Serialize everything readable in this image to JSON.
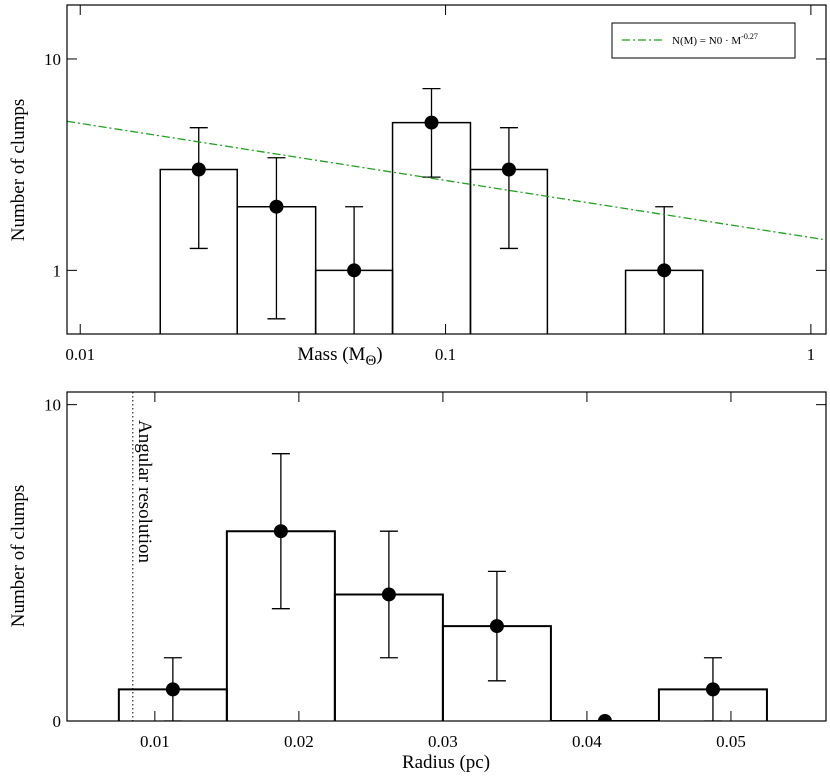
{
  "chart_data": [
    {
      "type": "histogram",
      "xlabel": "Mass (M",
      "xlabel_sub": "Θ",
      "xlabel_end": ")",
      "ylabel": "Number of clumps",
      "bins": [
        0.01656,
        0.0269,
        0.0441,
        0.0716,
        0.117,
        0.19,
        0.311,
        0.506
      ],
      "counts": [
        3,
        2,
        1,
        5,
        3,
        0,
        1
      ],
      "errors": [
        1.73,
        1.41,
        1,
        2.24,
        1.73,
        0,
        1
      ],
      "color": "#000000",
      "log_x": true,
      "log_y": true,
      "xlim": [
        0.0092,
        1.1
      ],
      "ylim": [
        0.5,
        18
      ],
      "xticks": [
        0.01,
        0.1,
        1
      ],
      "yticks": [
        1,
        10
      ],
      "fit": {
        "legend": "N(M) = N0 · M",
        "exponent": -0.27,
        "coefficient": 1.43,
        "color": "#22a022",
        "legend_position": "upper right"
      }
    },
    {
      "type": "histogram",
      "xlabel": "Radius (pc)",
      "ylabel": "Number of clumps",
      "bins": [
        0.0075,
        0.015,
        0.0225,
        0.03,
        0.0375,
        0.045,
        0.0525
      ],
      "counts": [
        1,
        6,
        4,
        3,
        0,
        1
      ],
      "errors": [
        1,
        2.45,
        2,
        1.73,
        0,
        1
      ],
      "color": "#000000",
      "log_x": false,
      "log_y": false,
      "xlim": [
        0.0039,
        0.0566
      ],
      "ylim": [
        0,
        10.4
      ],
      "xticks": [
        0.01,
        0.02,
        0.03,
        0.04,
        0.05
      ],
      "yticks": [
        0,
        10
      ],
      "annotation": {
        "label": "Angular resolution",
        "x": 0.00847
      }
    }
  ]
}
